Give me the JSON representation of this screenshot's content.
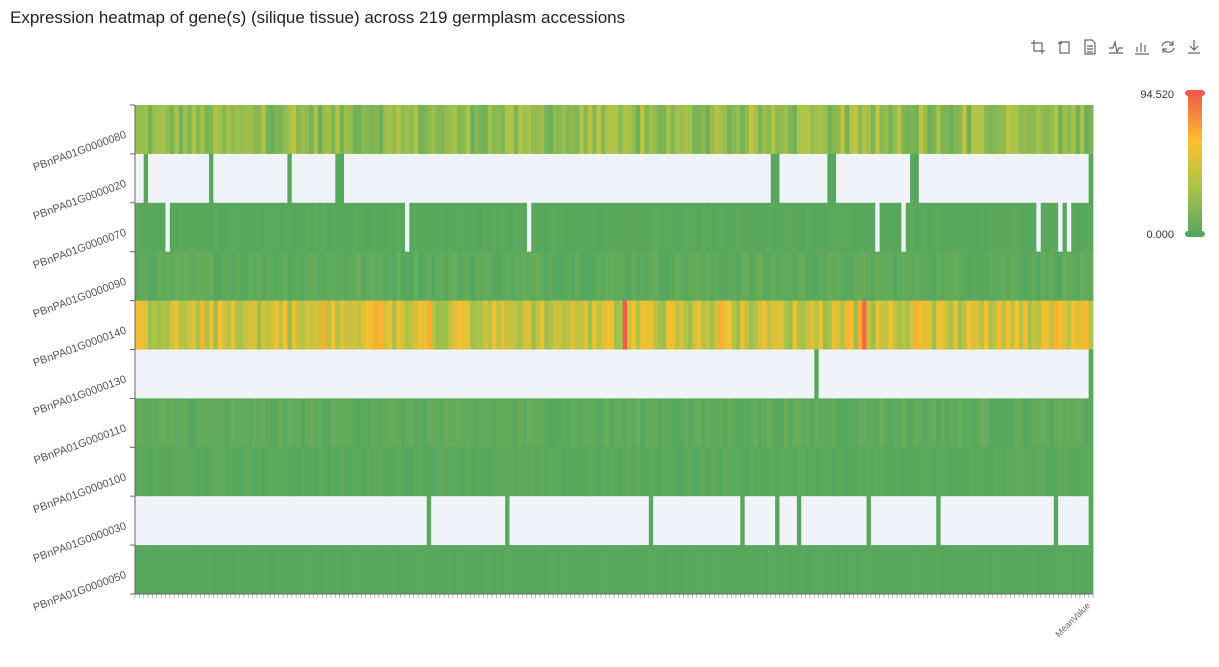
{
  "title": "Expression heatmap of gene(s) (silique tissue) across 219 germplasm accessions",
  "toolbox": [
    "zoom-icon",
    "zoom-reset-icon",
    "data-view-icon",
    "line-chart-icon",
    "bar-chart-icon",
    "restore-icon",
    "download-icon"
  ],
  "colors": {
    "low": "#57a75e",
    "mid1": "#a9c34a",
    "mid2": "#fbc02d",
    "high": "#f25a4a",
    "empty": "#f0f3f8"
  },
  "chart_data": {
    "type": "heatmap",
    "title": "Expression heatmap of gene(s) (silique tissue) across 219 germplasm accessions",
    "rows": [
      "PBnPA01G0000080",
      "PBnPA01G0000020",
      "PBnPA01G0000070",
      "PBnPA01G0000090",
      "PBnPA01G0000140",
      "PBnPA01G0000130",
      "PBnPA01G0000110",
      "PBnPA01G0000100",
      "PBnPA01G0000030",
      "PBnPA01G0000050"
    ],
    "n_accessions": 219,
    "last_column_label": "MeanValue",
    "visual_map": {
      "min": 0.0,
      "max": 94.52,
      "min_label": "0.000",
      "max_label": "94.520"
    },
    "row_summary": [
      {
        "gene": "PBnPA01G0000080",
        "typical_range": [
          8,
          35
        ],
        "empty_bands": []
      },
      {
        "gene": "PBnPA01G0000020",
        "typical_range": [
          0,
          0
        ],
        "mostly_empty": true,
        "value_bands": [
          [
            2,
            3
          ],
          [
            17,
            18
          ],
          [
            35,
            36
          ],
          [
            46,
            48
          ],
          [
            146,
            148
          ],
          [
            159,
            161
          ],
          [
            178,
            180
          ],
          [
            219,
            220
          ]
        ]
      },
      {
        "gene": "PBnPA01G0000070",
        "typical_range": [
          0,
          2
        ],
        "empty_bands": [
          [
            7,
            8
          ],
          [
            62,
            63
          ],
          [
            90,
            91
          ],
          [
            170,
            171
          ],
          [
            176,
            177
          ],
          [
            207,
            208
          ],
          [
            212,
            213
          ],
          [
            214,
            215
          ]
        ]
      },
      {
        "gene": "PBnPA01G0000090",
        "typical_range": [
          0,
          6
        ],
        "empty_bands": []
      },
      {
        "gene": "PBnPA01G0000140",
        "typical_range": [
          25,
          60
        ],
        "peaks": [
          94.5,
          90.1
        ],
        "empty_bands": []
      },
      {
        "gene": "PBnPA01G0000130",
        "typical_range": [
          0,
          0
        ],
        "mostly_empty": true,
        "value_bands": [
          [
            156,
            157
          ],
          [
            219,
            220
          ]
        ]
      },
      {
        "gene": "PBnPA01G0000110",
        "typical_range": [
          0,
          6
        ],
        "empty_bands": []
      },
      {
        "gene": "PBnPA01G0000100",
        "typical_range": [
          0,
          3
        ],
        "empty_bands": []
      },
      {
        "gene": "PBnPA01G0000030",
        "typical_range": [
          0,
          0
        ],
        "mostly_empty": true,
        "value_bands": [
          [
            67,
            68
          ],
          [
            85,
            86
          ],
          [
            118,
            119
          ],
          [
            139,
            140
          ],
          [
            147,
            148
          ],
          [
            152,
            153
          ],
          [
            168,
            169
          ],
          [
            184,
            185
          ],
          [
            211,
            212
          ],
          [
            219,
            220
          ]
        ]
      },
      {
        "gene": "PBnPA01G0000050",
        "typical_range": [
          0,
          1
        ],
        "empty_bands": []
      }
    ],
    "xlabel": "",
    "ylabel": "",
    "grid": false,
    "legend_placement": "right"
  }
}
